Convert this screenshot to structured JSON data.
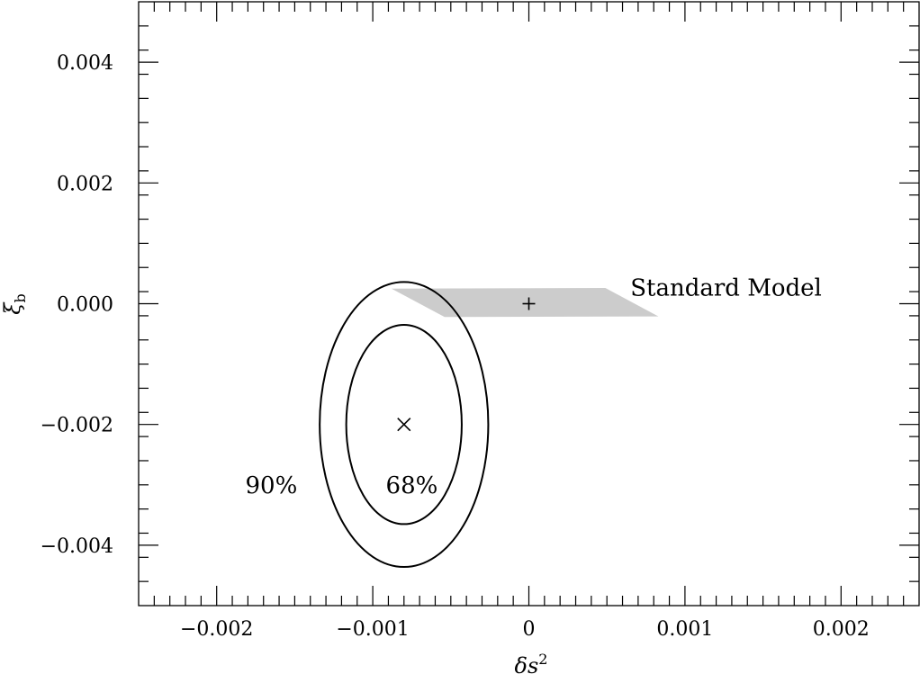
{
  "chart_data": {
    "type": "contour",
    "xlabel": "δs",
    "xlabel_sup": "2",
    "ylabel": "ξ",
    "ylabel_sub": "b",
    "xlim": [
      -0.0025,
      0.0025
    ],
    "ylim": [
      -0.005,
      0.005
    ],
    "x_ticks": [
      -0.002,
      -0.001,
      0,
      0.001,
      0.002
    ],
    "x_tick_labels": [
      "−0.002",
      "−0.001",
      "0",
      "0.001",
      "0.002"
    ],
    "y_ticks": [
      0.004,
      0.002,
      0.0,
      -0.002,
      -0.004
    ],
    "y_tick_labels": [
      "0.004",
      "0.002",
      "0.000",
      "−0.002",
      "−0.004"
    ],
    "x_minor_step": 0.0001,
    "y_minor_step": 0.0004,
    "grid": false,
    "best_fit": {
      "x": -0.0008,
      "y": -0.002,
      "marker": "×"
    },
    "contours": [
      {
        "label": "68%",
        "center": [
          -0.0008,
          -0.002
        ],
        "rx": 0.00037,
        "ry": 0.00165,
        "label_at": [
          -0.00075,
          -0.003
        ]
      },
      {
        "label": "90%",
        "center": [
          -0.0008,
          -0.002
        ],
        "rx": 0.00054,
        "ry": 0.00236,
        "label_at": [
          -0.00165,
          -0.003
        ]
      }
    ],
    "standard_model": {
      "label": "Standard Model",
      "label_at": [
        0.00065,
        0.00027
      ],
      "point": {
        "x": 0.0,
        "y": 0.0,
        "marker": "+"
      },
      "region": [
        [
          -0.00088,
          0.00025
        ],
        [
          0.00049,
          0.00026
        ],
        [
          0.00083,
          -0.00021
        ],
        [
          -0.00054,
          -0.00022
        ]
      ],
      "color": "#cccccc"
    }
  }
}
